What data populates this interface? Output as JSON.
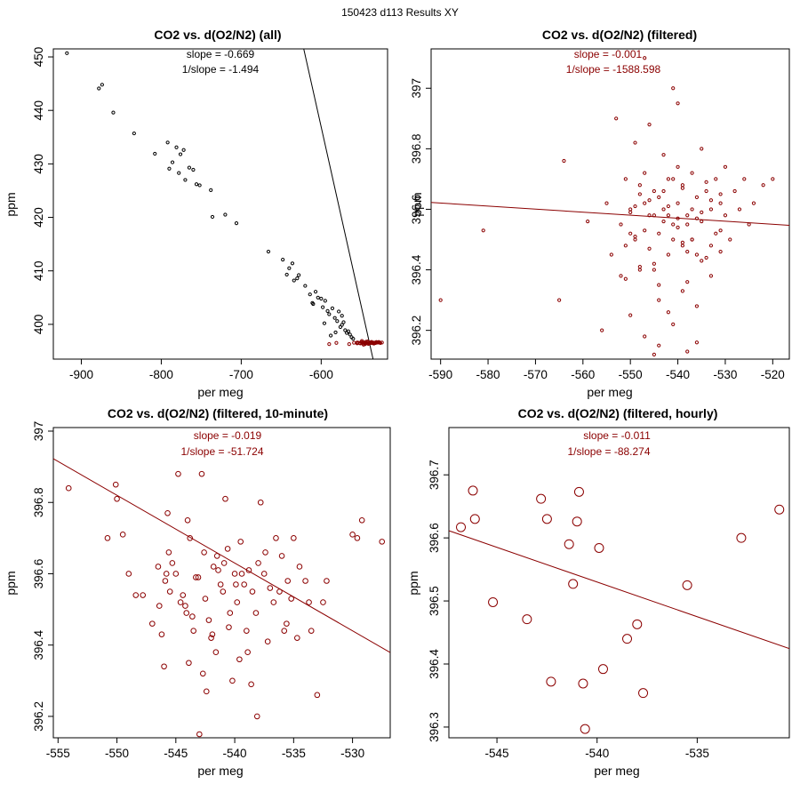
{
  "suptitle": "150423   d113   Results XY",
  "colors": {
    "main": "#8b0000",
    "black": "#000000",
    "axis": "#000000"
  },
  "chart_data": [
    {
      "type": "scatter",
      "title": "CO2 vs. d(O2/N2) (all)",
      "xlabel": "per meg",
      "ylabel": "ppm",
      "xlim": [
        -935,
        -517
      ],
      "ylim": [
        393.5,
        451.5
      ],
      "xticks": [
        -900,
        -800,
        -700,
        -600
      ],
      "yticks": [
        400,
        410,
        420,
        430,
        440,
        450
      ],
      "annotations": [
        "slope = -0.669",
        "1/slope = -1.494"
      ],
      "annotation_color": "#000000",
      "fit_line": {
        "slope": -0.669,
        "intercept": 35.5,
        "color": "#000000"
      },
      "series": [
        {
          "color": "#000000",
          "point_radius": 1.6,
          "x": [
            -918,
            -878,
            -874,
            -860,
            -834,
            -808,
            -792,
            -790,
            -786,
            -781,
            -778,
            -776,
            -772,
            -770,
            -765,
            -760,
            -756,
            -752,
            -738,
            -736,
            -720,
            -706,
            -666,
            -648,
            -643,
            -640,
            -636,
            -634,
            -630,
            -628,
            -620,
            -614,
            -610,
            -607,
            -604,
            -600,
            -598,
            -595,
            -592,
            -590,
            -586,
            -583,
            -580,
            -578,
            -576,
            -574,
            -572,
            -570,
            -568,
            -566,
            -564,
            -562,
            -560,
            -574,
            -596,
            -611,
            -588,
            -582
          ],
          "y": [
            450.7,
            444.1,
            444.8,
            439.6,
            435.7,
            431.9,
            434.0,
            429.1,
            430.3,
            433.1,
            428.3,
            431.8,
            432.6,
            427.0,
            429.3,
            428.9,
            426.2,
            426.0,
            425.1,
            420.1,
            420.5,
            418.9,
            413.6,
            412.1,
            409.3,
            410.5,
            411.4,
            408.2,
            408.6,
            409.2,
            407.2,
            405.6,
            403.8,
            406.1,
            405.0,
            404.8,
            403.2,
            404.4,
            402.5,
            401.9,
            403.0,
            401.2,
            400.6,
            402.4,
            399.5,
            399.9,
            400.4,
            398.9,
            398.4,
            398.7,
            398.1,
            397.6,
            397.3,
            401.6,
            400.2,
            404.0,
            397.9,
            398.5
          ]
        },
        {
          "color": "#8b0000",
          "point_radius": 1.6,
          "x": [
            -555,
            -552,
            -550,
            -548,
            -546,
            -545,
            -543,
            -542,
            -541,
            -540,
            -539,
            -538,
            -537,
            -535,
            -534,
            -532,
            -530,
            -528,
            -526,
            -524,
            -590,
            -581,
            -565,
            -559,
            -555,
            -549,
            -547,
            -544,
            -541,
            -538,
            -536,
            -533,
            -531,
            -529,
            -527,
            -554,
            -551,
            -546,
            -543,
            -539,
            -535,
            -533,
            -537,
            -544,
            -548
          ],
          "y": [
            396.6,
            396.5,
            396.7,
            396.4,
            396.6,
            396.3,
            396.5,
            396.8,
            396.6,
            396.4,
            396.6,
            396.5,
            396.7,
            396.6,
            396.4,
            396.5,
            396.6,
            396.7,
            396.5,
            396.6,
            396.3,
            396.53,
            396.3,
            396.56,
            396.45,
            396.9,
            396.2,
            396.75,
            396.35,
            396.65,
            396.52,
            396.48,
            396.7,
            396.6,
            396.62,
            396.58,
            396.42,
            396.5,
            396.55,
            396.61,
            396.44,
            396.57,
            396.68,
            396.49,
            396.63
          ]
        }
      ]
    },
    {
      "type": "scatter",
      "title": "CO2 vs. d(O2/N2) (filtered)",
      "xlabel": "per meg",
      "ylabel": "ppm",
      "xlim": [
        -592,
        -516.5
      ],
      "ylim": [
        396.105,
        397.13
      ],
      "xticks": [
        -590,
        -580,
        -570,
        -560,
        -550,
        -540,
        -530,
        -520
      ],
      "yticks": [
        396.2,
        396.4,
        396.6,
        396.8,
        397.0
      ],
      "annotations": [
        "slope = -0.001",
        "1/slope = -1588.598"
      ],
      "annotation_color": "#8b0000",
      "fit_line": {
        "slope": -0.001,
        "intercept": 396.0306,
        "color": "#8b0000"
      },
      "series": [
        {
          "color": "#8b0000",
          "point_radius": 1.6,
          "x": [
            -590,
            -581,
            -565,
            -564,
            -559,
            -556,
            -555,
            -554,
            -553,
            -552,
            -552,
            -551,
            -551,
            -550,
            -550,
            -549,
            -549,
            -548,
            -548,
            -547,
            -547,
            -546,
            -546,
            -545,
            -545,
            -544,
            -544,
            -543,
            -543,
            -542,
            -542,
            -541,
            -541,
            -540,
            -540,
            -539,
            -539,
            -538,
            -538,
            -537,
            -537,
            -536,
            -536,
            -535,
            -535,
            -534,
            -534,
            -533,
            -533,
            -532,
            -532,
            -531,
            -531,
            -530,
            -530,
            -529,
            -528,
            -527,
            -526,
            -525,
            -524,
            -522,
            -520,
            -545,
            -541,
            -538,
            -544,
            -547,
            -536,
            -542,
            -539,
            -550,
            -533,
            -546,
            -540,
            -548,
            -535,
            -543,
            -537,
            -549,
            -531,
            -545,
            -541,
            -538,
            -544,
            -547,
            -536,
            -542,
            -539,
            -550,
            -533,
            -546,
            -540,
            -548,
            -535,
            -543,
            -537,
            -549,
            -531,
            -545,
            -541,
            -538,
            -544,
            -547,
            -536,
            -542,
            -539,
            -534,
            -551,
            -540
          ],
          "y": [
            396.3,
            396.53,
            396.3,
            396.76,
            396.56,
            396.2,
            396.62,
            396.45,
            396.9,
            396.55,
            396.38,
            396.7,
            396.48,
            396.6,
            396.25,
            396.82,
            396.5,
            396.65,
            396.4,
            396.72,
            396.18,
            396.58,
            396.88,
            396.42,
            396.66,
            396.52,
            396.3,
            396.78,
            396.6,
            396.45,
            396.7,
            396.55,
            396.22,
            396.62,
            396.95,
            396.48,
            396.68,
            396.58,
            396.36,
            396.72,
            396.5,
            396.64,
            396.28,
            396.56,
            396.8,
            396.44,
            396.66,
            396.6,
            396.38,
            396.7,
            396.52,
            396.62,
            396.46,
            396.58,
            396.74,
            396.5,
            396.66,
            396.6,
            396.7,
            396.55,
            396.62,
            396.68,
            396.7,
            396.58,
            396.5,
            396.46,
            396.64,
            396.53,
            396.57,
            396.61,
            396.49,
            396.59,
            396.63,
            396.47,
            396.54,
            396.68,
            396.43,
            396.56,
            396.6,
            396.51,
            396.65,
            396.4,
            396.7,
            396.55,
            396.35,
            396.62,
            396.45,
            396.58,
            396.67,
            396.52,
            396.48,
            396.63,
            396.57,
            396.41,
            396.59,
            396.66,
            396.5,
            396.61,
            396.53,
            396.12,
            397.0,
            396.13,
            396.15,
            397.1,
            396.16,
            396.26,
            396.33,
            396.69,
            396.37,
            396.74
          ]
        }
      ]
    },
    {
      "type": "scatter",
      "title": "CO2 vs. d(O2/N2) (filtered, 10-minute)",
      "xlabel": "per meg",
      "ylabel": "ppm",
      "xlim": [
        -555.4,
        -526.8
      ],
      "ylim": [
        396.14,
        397.01
      ],
      "xticks": [
        -555,
        -550,
        -545,
        -540,
        -535,
        -530
      ],
      "yticks": [
        396.2,
        396.4,
        396.6,
        396.8,
        397.0
      ],
      "annotations": [
        "slope = -0.019",
        "1/slope = -51.724"
      ],
      "annotation_color": "#8b0000",
      "fit_line": {
        "slope": -0.019,
        "intercept": 386.37,
        "color": "#8b0000"
      },
      "series": [
        {
          "color": "#8b0000",
          "point_radius": 2.8,
          "x": [
            -554.1,
            -550.1,
            -550.0,
            -549.5,
            -550.8,
            -549.0,
            -547.8,
            -547.0,
            -546.5,
            -546.2,
            -546.0,
            -545.8,
            -545.7,
            -545.6,
            -545.5,
            -545.3,
            -545.0,
            -544.8,
            -544.4,
            -544.2,
            -544.0,
            -543.8,
            -543.6,
            -543.5,
            -543.3,
            -543.0,
            -542.8,
            -542.6,
            -542.5,
            -542.2,
            -542.0,
            -541.8,
            -541.6,
            -541.5,
            -541.2,
            -541.0,
            -540.8,
            -540.6,
            -540.5,
            -540.2,
            -540.0,
            -539.8,
            -539.6,
            -539.5,
            -539.2,
            -539.0,
            -538.8,
            -538.6,
            -538.5,
            -538.2,
            -538.0,
            -537.8,
            -537.5,
            -537.2,
            -537.0,
            -536.7,
            -536.5,
            -536.0,
            -535.8,
            -535.5,
            -535.2,
            -535.0,
            -534.7,
            -534.5,
            -534.0,
            -533.7,
            -533.5,
            -533.0,
            -532.5,
            -532.2,
            -530.0,
            -529.6,
            -529.2,
            -527.5,
            -545.9,
            -541.4,
            -538.9,
            -540.4,
            -543.9,
            -536.2,
            -542.4,
            -539.4,
            -541.9,
            -544.6,
            -537.4,
            -546.4,
            -538.1,
            -543.1,
            -540.9,
            -535.6,
            -548.4,
            -542.7,
            -539.9,
            -544.1
          ],
          "y": [
            396.84,
            396.85,
            396.81,
            396.71,
            396.7,
            396.6,
            396.54,
            396.46,
            396.62,
            396.43,
            396.34,
            396.6,
            396.77,
            396.66,
            396.55,
            396.63,
            396.6,
            396.88,
            396.54,
            396.51,
            396.75,
            396.7,
            396.48,
            396.44,
            396.59,
            396.15,
            396.88,
            396.66,
            396.53,
            396.47,
            396.42,
            396.62,
            396.38,
            396.65,
            396.57,
            396.55,
            396.81,
            396.67,
            396.45,
            396.3,
            396.6,
            396.52,
            396.36,
            396.69,
            396.57,
            396.44,
            396.61,
            396.29,
            396.55,
            396.49,
            396.63,
            396.8,
            396.6,
            396.41,
            396.56,
            396.52,
            396.7,
            396.65,
            396.44,
            396.58,
            396.53,
            396.7,
            396.42,
            396.62,
            396.58,
            396.52,
            396.44,
            396.26,
            396.52,
            396.58,
            396.71,
            396.7,
            396.75,
            396.69,
            396.58,
            396.61,
            396.38,
            396.49,
            396.35,
            396.55,
            396.27,
            396.6,
            396.43,
            396.52,
            396.66,
            396.51,
            396.2,
            396.59,
            396.63,
            396.46,
            396.54,
            396.32,
            396.57,
            396.49
          ]
        }
      ]
    },
    {
      "type": "scatter",
      "title": "CO2 vs. d(O2/N2) (filtered, hourly)",
      "xlabel": "per meg",
      "ylabel": "ppm",
      "xlim": [
        -547.4,
        -530.4
      ],
      "ylim": [
        396.283,
        396.775
      ],
      "xticks": [
        -545,
        -540,
        -535
      ],
      "yticks": [
        396.3,
        396.4,
        396.5,
        396.6,
        396.7
      ],
      "annotations": [
        "slope = -0.011",
        "1/slope = -88.274"
      ],
      "annotation_color": "#8b0000",
      "fit_line": {
        "slope": -0.011,
        "intercept": 390.59,
        "color": "#8b0000"
      },
      "series": [
        {
          "color": "#8b0000",
          "point_radius": 5,
          "x": [
            -546.8,
            -546.2,
            -546.1,
            -545.2,
            -543.5,
            -542.8,
            -542.5,
            -542.3,
            -541.4,
            -541.2,
            -541.0,
            -540.9,
            -540.7,
            -540.6,
            -539.9,
            -539.7,
            -538.5,
            -538.0,
            -537.7,
            -535.5,
            -532.8,
            -530.9
          ],
          "y": [
            396.617,
            396.675,
            396.63,
            396.498,
            396.471,
            396.662,
            396.63,
            396.372,
            396.59,
            396.527,
            396.626,
            396.673,
            396.369,
            396.297,
            396.584,
            396.392,
            396.44,
            396.463,
            396.354,
            396.525,
            396.6,
            396.645
          ]
        }
      ]
    }
  ]
}
